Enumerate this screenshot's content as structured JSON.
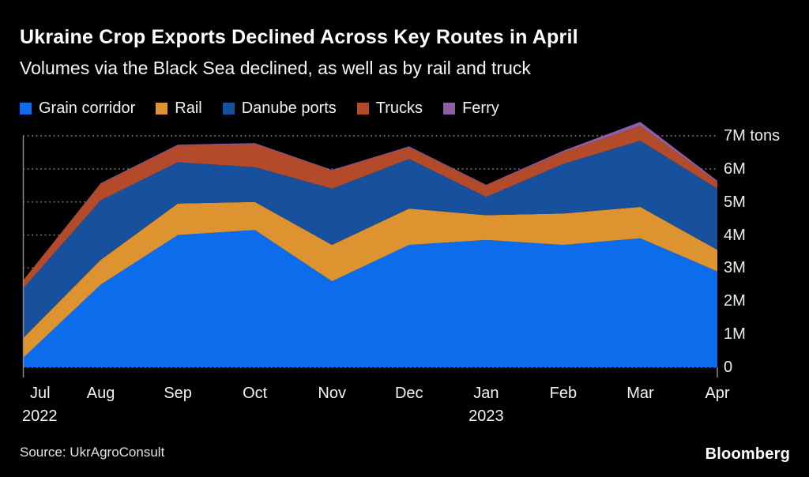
{
  "header": {
    "title": "Ukraine Crop Exports Declined Across Key Routes in April",
    "subtitle": "Volumes via the Black Sea declined, as well as by rail and truck"
  },
  "chart_data": {
    "type": "area",
    "stacked": true,
    "title": "Ukraine Crop Exports Declined Across Key Routes in April",
    "subtitle": "Volumes via the Black Sea declined, as well as by rail and truck",
    "unit": "M tons",
    "x": [
      "Jul",
      "Aug",
      "Sep",
      "Oct",
      "Nov",
      "Dec",
      "Jan",
      "Feb",
      "Mar",
      "Apr"
    ],
    "x_years": [
      {
        "label": "2022",
        "index": 0
      },
      {
        "label": "2023",
        "index": 6
      }
    ],
    "ylim": [
      0,
      7
    ],
    "yticks": [
      {
        "value": 0,
        "label": "0"
      },
      {
        "value": 1,
        "label": "1M"
      },
      {
        "value": 2,
        "label": "2M"
      },
      {
        "value": 3,
        "label": "3M"
      },
      {
        "value": 4,
        "label": "4M"
      },
      {
        "value": 5,
        "label": "5M"
      },
      {
        "value": 6,
        "label": "6M"
      },
      {
        "value": 7,
        "label": "7M tons"
      }
    ],
    "grid": "horizontal-dotted",
    "grid_color": "#6f6f6f",
    "axis_color": "#8a8a8a",
    "legend_position": "top",
    "series": [
      {
        "name": "Grain corridor",
        "color": "#0d6cec",
        "values": [
          0.3,
          2.5,
          4.0,
          4.15,
          2.6,
          3.7,
          3.85,
          3.7,
          3.9,
          2.9
        ]
      },
      {
        "name": "Rail",
        "color": "#dd932f",
        "values": [
          0.6,
          0.75,
          0.95,
          0.85,
          1.1,
          1.1,
          0.75,
          0.95,
          0.95,
          0.65
        ]
      },
      {
        "name": "Danube ports",
        "color": "#17509c",
        "values": [
          1.5,
          1.8,
          1.25,
          1.05,
          1.7,
          1.5,
          0.55,
          1.5,
          2.0,
          1.85
        ]
      },
      {
        "name": "Trucks",
        "color": "#b34a29",
        "values": [
          0.25,
          0.5,
          0.5,
          0.7,
          0.55,
          0.35,
          0.35,
          0.35,
          0.45,
          0.2
        ]
      },
      {
        "name": "Ferry",
        "color": "#8e5fa6",
        "values": [
          0.0,
          0.02,
          0.03,
          0.03,
          0.02,
          0.03,
          0.02,
          0.05,
          0.12,
          0.04
        ]
      }
    ]
  },
  "footer": {
    "source": "Source: UkrAgroConsult",
    "brand": "Bloomberg"
  }
}
